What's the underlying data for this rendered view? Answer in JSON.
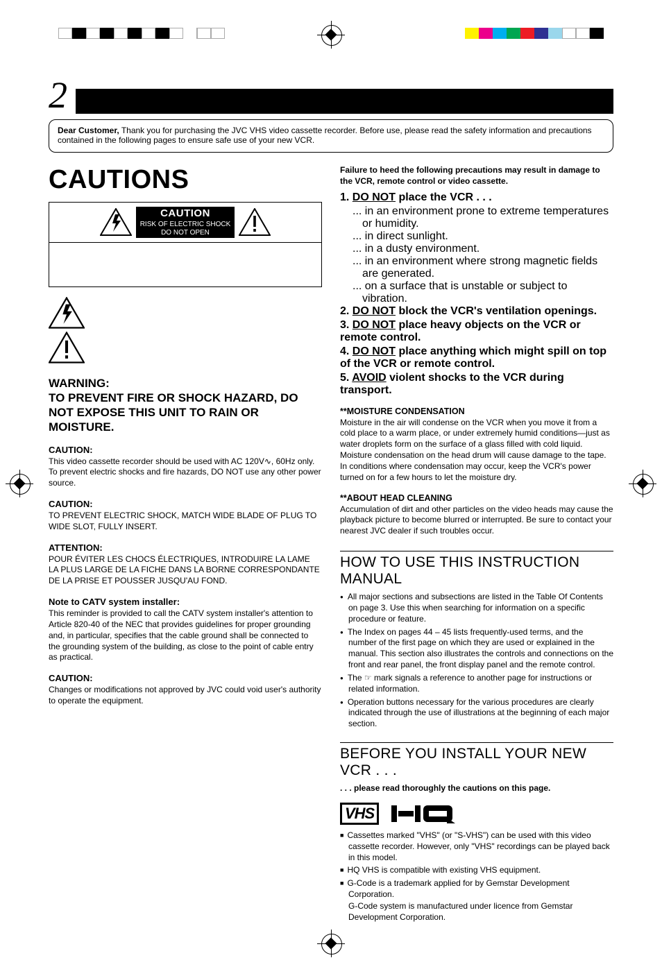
{
  "page_number": "2",
  "intro": {
    "lead": "Dear Customer,",
    "body": "Thank you for purchasing the JVC VHS video cassette recorder. Before use, please read the safety information and precautions contained in the following pages to ensure safe use of your new VCR."
  },
  "cautions_title": "CAUTIONS",
  "caution_plate": {
    "title": "CAUTION",
    "line1": "RISK OF ELECTRIC SHOCK",
    "line2": "DO NOT OPEN"
  },
  "warning_block": {
    "heading": "WARNING:\nTO PREVENT FIRE OR SHOCK HAZARD, DO NOT EXPOSE THIS UNIT TO RAIN OR MOISTURE.",
    "caution1_h": "CAUTION:",
    "caution1_p1": "This video cassette recorder should be used with AC 120V∿, 60Hz only.",
    "caution1_p2": "To prevent electric shocks and fire hazards, DO NOT use any other power source.",
    "caution2_h": "CAUTION:",
    "caution2_p": "TO PREVENT ELECTRIC SHOCK, MATCH WIDE BLADE OF PLUG TO WIDE SLOT, FULLY INSERT.",
    "attention_h": "ATTENTION:",
    "attention_p": "POUR ÉVITER LES CHOCS ÉLECTRIQUES, INTRODUIRE LA LAME LA PLUS LARGE DE LA FICHE DANS LA BORNE CORRESPONDANTE DE LA PRISE ET POUSSER JUSQU'AU FOND.",
    "catv_h": "Note to CATV system installer:",
    "catv_p": "This reminder is provided to call the CATV system installer's attention to Article 820-40 of the NEC that provides guidelines for proper grounding and, in particular, specifies that the cable ground shall be connected to the grounding system of the building, as close to the point of cable entry as practical.",
    "caution3_h": "CAUTION:",
    "caution3_p": "Changes or modifications not approved by JVC could void user's authority to operate the equipment."
  },
  "right": {
    "top_bold": "Failure to heed the following precautions may result in damage to the VCR, remote control or video cassette.",
    "items": [
      {
        "n": "1.",
        "u": "DO NOT",
        "rest": " place the VCR . . .",
        "subs": [
          "... in an environment prone to extreme temperatures or humidity.",
          "... in direct sunlight.",
          "... in a dusty environment.",
          "... in an environment where strong magnetic fields are generated.",
          "... on a surface that is unstable or subject to vibration."
        ]
      },
      {
        "n": "2.",
        "u": "DO NOT",
        "rest": " block the VCR's ventilation openings."
      },
      {
        "n": "3.",
        "u": "DO NOT",
        "rest": " place heavy objects on the VCR or remote control."
      },
      {
        "n": "4.",
        "u": "DO NOT",
        "rest": " place anything which might spill on top of the VCR or remote control."
      },
      {
        "n": "5.",
        "u": "AVOID",
        "rest": " violent shocks to the VCR during transport."
      }
    ],
    "moist_h": "**MOISTURE CONDENSATION",
    "moist_p": "Moisture in the air will condense on the VCR when you move it from a cold place to a warm place, or under extremely humid conditions—just as water droplets form on the surface of a glass filled with cold liquid. Moisture condensation on the head drum will cause damage to the tape. In conditions where condensation may occur, keep the VCR's power turned on for a few hours to let the moisture dry.",
    "head_h": "**ABOUT HEAD CLEANING",
    "head_p": "Accumulation of dirt and other particles on the video heads may cause the playback picture to become blurred or interrupted. Be sure to contact your nearest JVC dealer if such troubles occur.",
    "howto_h": "HOW TO USE THIS INSTRUCTION MANUAL",
    "howto_bullets": [
      "All major sections and subsections are listed in the Table Of Contents on page 3. Use this when searching for information on a specific procedure or feature.",
      "The Index on pages 44 – 45 lists frequently-used terms, and the number of the first page on which they are used or explained in the manual. This section also illustrates the controls and connections on the front and rear panel, the front display panel and the remote control.",
      "The ☞ mark signals a reference to another page for instructions or related information.",
      "Operation buttons necessary for the various procedures are clearly indicated through the use of illustrations at the beginning of each major section."
    ],
    "before_h": "BEFORE YOU INSTALL YOUR NEW VCR . . .",
    "please": ". . . please read thoroughly the cautions on this page.",
    "vhs_label": "VHS",
    "sq_bullets": [
      "Cassettes marked \"VHS\" (or \"S-VHS\") can be used with this video cassette recorder. However, only \"VHS\" recordings can be played back in this model.",
      "HQ VHS is compatible with existing VHS equipment.",
      "G-Code is a trademark applied for by Gemstar Development Corporation.",
      "G-Code system is manufactured under licence from Gemstar Development Corporation."
    ]
  }
}
